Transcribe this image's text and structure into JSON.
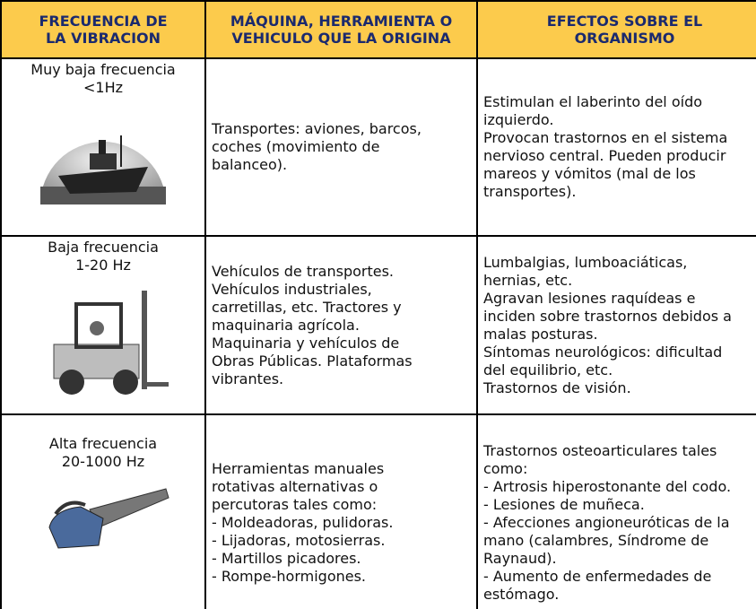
{
  "table": {
    "header": [
      [
        "FRECUENCIA DE",
        "LA VIBRACION"
      ],
      [
        "MÁQUINA, HERRAMIENTA O",
        "VEHICULO QUE LA ORIGINA"
      ],
      [
        "EFECTOS SOBRE EL",
        "ORGANISMO"
      ]
    ],
    "rows": [
      {
        "frequency": [
          "Muy baja frecuencia",
          "<1Hz"
        ],
        "source": [
          "Transportes: aviones, barcos,",
          "coches (movimiento de",
          "balanceo)."
        ],
        "effects": [
          "Estimulan el laberinto del oído",
          "izquierdo.",
          "Provocan trastornos en el sistema",
          "nervioso central. Pueden producir",
          "mareos y vómitos (mal de los",
          "transportes)."
        ]
      },
      {
        "frequency": [
          "Baja frecuencia",
          "1-20 Hz"
        ],
        "source": [
          "Vehículos de transportes.",
          "Vehículos industriales,",
          "carretillas, etc. Tractores y",
          "maquinaria agrícola.",
          "Maquinaria y vehículos de",
          "Obras Públicas. Plataformas",
          "vibrantes."
        ],
        "effects": [
          "Lumbalgias, lumboaciáticas,",
          "hernias, etc.",
          "Agravan lesiones raquídeas e",
          "inciden sobre trastornos debidos a",
          "malas posturas.",
          "Síntomas neurológicos: dificultad",
          "del equilibrio, etc.",
          "Trastornos de visión."
        ]
      },
      {
        "frequency": [
          "Alta frecuencia",
          "20-1000 Hz"
        ],
        "source": [
          "Herramientas manuales",
          "rotativas alternativas o",
          "percutoras tales como:",
          "- Moldeadoras, pulidoras.",
          "- Lijadoras, motosierras.",
          "- Martillos picadores.",
          "- Rompe-hormigones."
        ],
        "effects": [
          "Trastornos osteoarticulares tales",
          "como:",
          "- Artrosis hiperostonante del codo.",
          "- Lesiones de muñeca.",
          "- Afecciones angioneuróticas de la",
          "mano (calambres, Síndrome de",
          "Raynaud).",
          "- Aumento de enfermedades de",
          "estómago."
        ]
      }
    ]
  }
}
